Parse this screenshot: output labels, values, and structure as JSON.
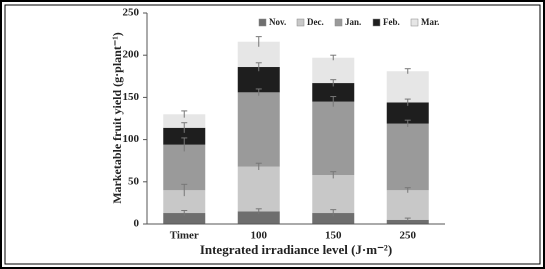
{
  "chart_data": {
    "type": "stacked_bar",
    "y_label": "Marketable fruit yield (g·plant⁻¹)",
    "x_label": "Integrated irradiance level (J·m⁻²)",
    "categories": [
      "Timer",
      "100",
      "150",
      "250"
    ],
    "series": [
      {
        "name": "Nov.",
        "color": "#6e6e6e",
        "values": [
          13,
          15,
          13,
          5
        ],
        "errors": [
          3,
          3,
          4,
          2
        ]
      },
      {
        "name": "Dec.",
        "color": "#c8c8c8",
        "values": [
          27,
          53,
          45,
          35
        ],
        "errors": [
          7,
          4,
          4,
          3
        ]
      },
      {
        "name": "Jan.",
        "color": "#9a9a9a",
        "values": [
          54,
          88,
          87,
          79
        ],
        "errors": [
          8,
          4,
          6,
          4
        ]
      },
      {
        "name": "Feb.",
        "color": "#1e1e1e",
        "values": [
          20,
          30,
          22,
          25
        ],
        "errors": [
          6,
          5,
          4,
          4
        ]
      },
      {
        "name": "Mar.",
        "color": "#e6e6e6",
        "values": [
          16,
          30,
          30,
          37
        ],
        "errors": [
          4,
          6,
          3,
          3
        ]
      }
    ],
    "ylim": [
      0,
      250
    ],
    "yticks": [
      0,
      50,
      100,
      150,
      200,
      250
    ],
    "grid": false,
    "legend": "top-right"
  }
}
